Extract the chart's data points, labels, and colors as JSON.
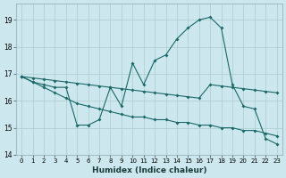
{
  "xlabel": "Humidex (Indice chaleur)",
  "bg_color": "#cce8ee",
  "grid_color": "#aacccc",
  "line_color": "#1a6868",
  "xlim": [
    -0.5,
    23.5
  ],
  "ylim": [
    14.0,
    19.6
  ],
  "yticks": [
    14,
    15,
    16,
    17,
    18,
    19
  ],
  "xticks": [
    0,
    1,
    2,
    3,
    4,
    5,
    6,
    7,
    8,
    9,
    10,
    11,
    12,
    13,
    14,
    15,
    16,
    17,
    18,
    19,
    20,
    21,
    22,
    23
  ],
  "curve1_x": [
    0,
    1,
    2,
    3,
    4,
    5,
    6,
    7,
    8,
    9,
    10,
    11,
    12,
    13,
    14,
    15,
    16,
    17,
    18,
    19,
    20,
    21,
    22,
    23
  ],
  "curve1_y": [
    16.9,
    16.7,
    16.6,
    16.5,
    16.5,
    15.1,
    15.1,
    15.3,
    16.5,
    15.8,
    17.4,
    16.6,
    17.5,
    17.7,
    18.3,
    18.7,
    19.0,
    19.1,
    18.7,
    16.6,
    15.8,
    15.7,
    14.6,
    14.4
  ],
  "curve2_x": [
    0,
    1,
    2,
    3,
    4,
    5,
    6,
    7,
    8,
    9,
    10,
    11,
    12,
    13,
    14,
    15,
    16,
    17,
    18,
    19,
    20,
    21,
    22,
    23
  ],
  "curve2_y": [
    16.9,
    16.85,
    16.8,
    16.75,
    16.7,
    16.65,
    16.6,
    16.55,
    16.5,
    16.45,
    16.4,
    16.35,
    16.3,
    16.25,
    16.2,
    16.15,
    16.1,
    16.6,
    16.55,
    16.5,
    16.45,
    16.4,
    16.35,
    16.3
  ],
  "curve3_x": [
    0,
    1,
    2,
    3,
    4,
    5,
    6,
    7,
    8,
    9,
    10,
    11,
    12,
    13,
    14,
    15,
    16,
    17,
    18,
    19,
    20,
    21,
    22,
    23
  ],
  "curve3_y": [
    16.9,
    16.7,
    16.5,
    16.3,
    16.1,
    15.9,
    15.8,
    15.7,
    15.6,
    15.5,
    15.4,
    15.4,
    15.3,
    15.3,
    15.2,
    15.2,
    15.1,
    15.1,
    15.0,
    15.0,
    14.9,
    14.9,
    14.8,
    14.7
  ]
}
